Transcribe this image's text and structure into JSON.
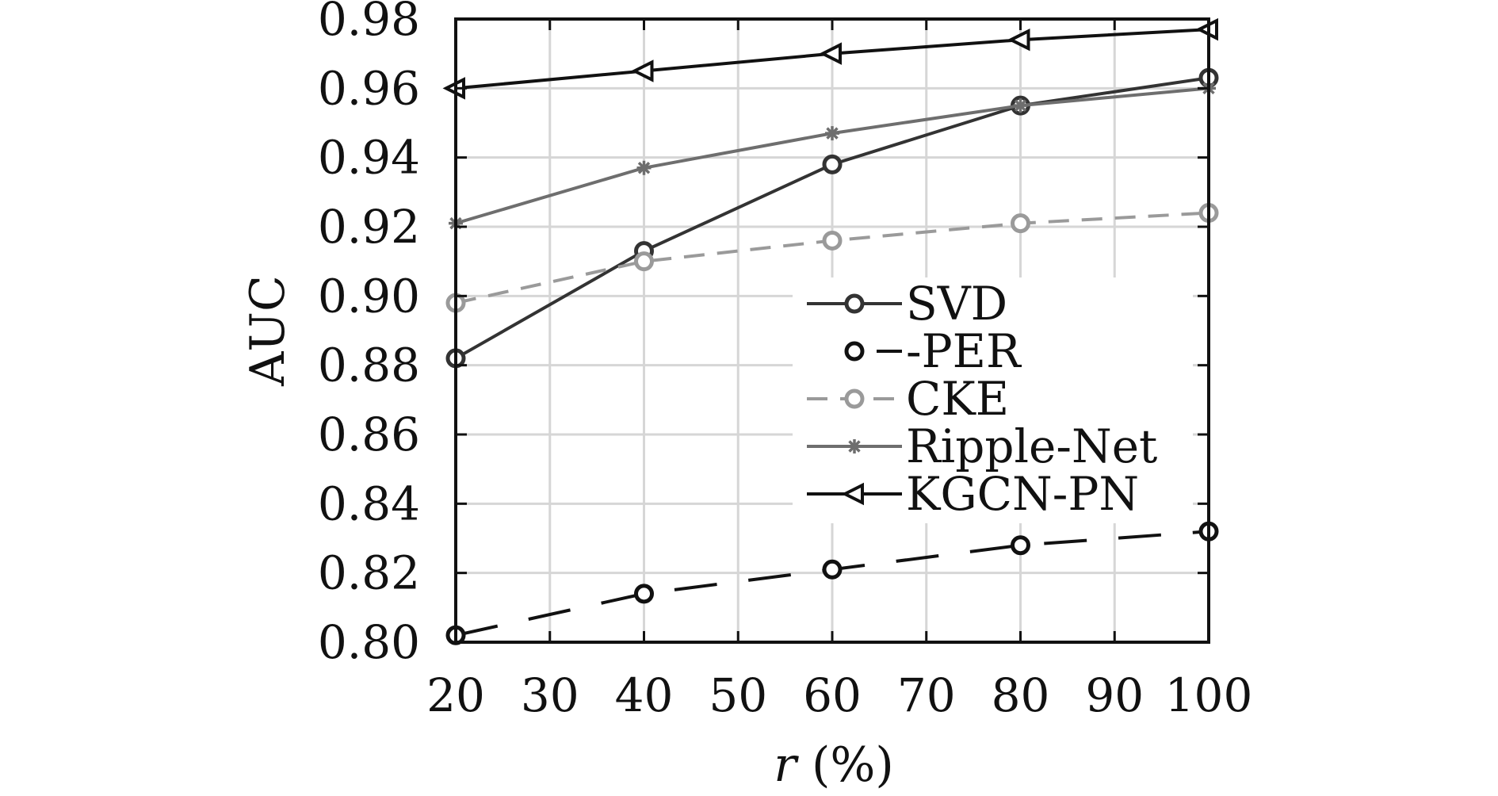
{
  "chart_data": {
    "type": "line",
    "xlabel": "r (%)",
    "xlabel_var": "r",
    "xlabel_unit": " (%)",
    "ylabel": "AUC",
    "x": [
      20,
      40,
      60,
      80,
      100
    ],
    "xlim": [
      20,
      100
    ],
    "ylim": [
      0.8,
      0.98
    ],
    "xticks": [
      20,
      30,
      40,
      50,
      60,
      70,
      80,
      90,
      100
    ],
    "xtick_labels": [
      "20",
      "30",
      "40",
      "50",
      "60",
      "70",
      "80",
      "90",
      "100"
    ],
    "yticks": [
      0.8,
      0.82,
      0.84,
      0.86,
      0.88,
      0.9,
      0.92,
      0.94,
      0.96,
      0.98
    ],
    "ytick_labels": [
      "0.80",
      "0.82",
      "0.84",
      "0.86",
      "0.88",
      "0.90",
      "0.92",
      "0.94",
      "0.96",
      "0.98"
    ],
    "grid": true,
    "legend_position": "center-right",
    "series": [
      {
        "name": "SVD",
        "values": [
          0.882,
          0.913,
          0.938,
          0.955,
          0.963
        ],
        "color": "#333333",
        "marker": "circle",
        "dash": "solid"
      },
      {
        "name": "-PER",
        "values": [
          0.802,
          0.814,
          0.821,
          0.828,
          0.832
        ],
        "color": "#111111",
        "marker": "circle",
        "dash": "long-dash"
      },
      {
        "name": "CKE",
        "values": [
          0.898,
          0.91,
          0.916,
          0.921,
          0.924
        ],
        "color": "#9a9a9a",
        "marker": "circle",
        "dash": "dash"
      },
      {
        "name": "Ripple-Net",
        "values": [
          0.921,
          0.937,
          0.947,
          0.955,
          0.96
        ],
        "color": "#6e6e6e",
        "marker": "star",
        "dash": "solid"
      },
      {
        "name": "KGCN-PN",
        "values": [
          0.96,
          0.965,
          0.97,
          0.974,
          0.977
        ],
        "color": "#111111",
        "marker": "left-triangle",
        "dash": "solid"
      }
    ]
  }
}
